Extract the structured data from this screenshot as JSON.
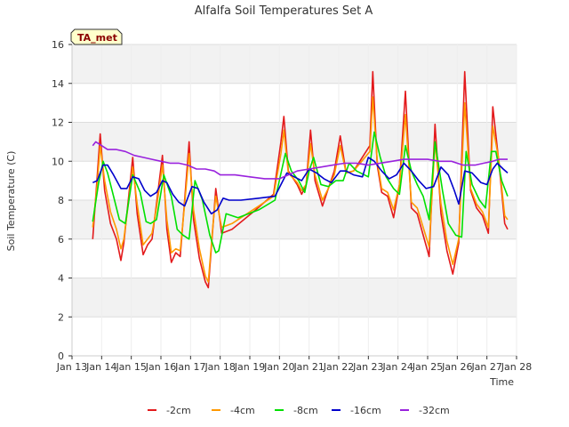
{
  "chart_data": {
    "type": "line",
    "title": "Alfalfa Soil Temperatures Set A",
    "xlabel": "Time",
    "ylabel": "Soil Temperature (C)",
    "badge": "TA_met",
    "xlim": [
      13,
      28
    ],
    "ylim": [
      0,
      16
    ],
    "x_ticks": [
      13,
      14,
      15,
      16,
      17,
      18,
      19,
      20,
      21,
      22,
      23,
      24,
      25,
      26,
      27,
      28
    ],
    "x_tick_labels": [
      "Jan 13",
      "Jan 14",
      "Jan 15",
      "Jan 16",
      "Jan 17",
      "Jan 18",
      "Jan 19",
      "Jan 20",
      "Jan 21",
      "Jan 22",
      "Jan 23",
      "Jan 24",
      "Jan 25",
      "Jan 26",
      "Jan 27",
      "Jan 28"
    ],
    "y_ticks": [
      0,
      2,
      4,
      6,
      8,
      10,
      12,
      14,
      16
    ],
    "y_tick_labels": [
      "0",
      "2",
      "4",
      "6",
      "8",
      "10",
      "12",
      "14",
      "16"
    ],
    "grid": true,
    "legend_position": "bottom",
    "series": [
      {
        "name": "-2cm",
        "color": "#e31a1c",
        "x": [
          13.7,
          13.85,
          13.95,
          14.1,
          14.3,
          14.5,
          14.65,
          14.75,
          14.9,
          15.05,
          15.2,
          15.4,
          15.55,
          15.7,
          15.85,
          16.05,
          16.2,
          16.35,
          16.5,
          16.65,
          16.8,
          16.95,
          17.1,
          17.3,
          17.5,
          17.6,
          17.75,
          17.85,
          18.05,
          18.4,
          19.2,
          19.8,
          20.05,
          20.15,
          20.3,
          20.6,
          20.75,
          20.9,
          21.05,
          21.2,
          21.45,
          21.65,
          21.85,
          22.05,
          22.25,
          22.5,
          23.05,
          23.15,
          23.3,
          23.45,
          23.65,
          23.85,
          24.05,
          24.25,
          24.45,
          24.65,
          24.85,
          25.05,
          25.25,
          25.45,
          25.65,
          25.85,
          26.05,
          26.25,
          26.45,
          26.65,
          26.85,
          27.05,
          27.2,
          27.4,
          27.6,
          27.7
        ],
        "values": [
          6.0,
          9.2,
          11.4,
          8.5,
          6.8,
          6.0,
          4.9,
          5.8,
          8.0,
          10.2,
          7.3,
          5.2,
          5.7,
          6.0,
          7.8,
          10.3,
          6.5,
          4.8,
          5.3,
          5.1,
          8.0,
          11.0,
          7.0,
          5.0,
          3.8,
          3.5,
          6.5,
          8.6,
          6.3,
          6.5,
          7.5,
          8.3,
          11.0,
          12.3,
          9.5,
          8.8,
          8.3,
          8.8,
          11.6,
          9.0,
          7.7,
          8.6,
          9.5,
          11.3,
          9.4,
          9.5,
          10.8,
          14.6,
          9.8,
          8.4,
          8.2,
          7.1,
          8.8,
          13.6,
          7.6,
          7.3,
          6.2,
          5.1,
          11.9,
          7.3,
          5.4,
          4.2,
          5.8,
          14.6,
          8.5,
          7.6,
          7.2,
          6.3,
          12.8,
          10.0,
          6.8,
          6.5
        ]
      },
      {
        "name": "-4cm",
        "color": "#ff9900",
        "x": [
          13.7,
          13.85,
          13.95,
          14.1,
          14.3,
          14.5,
          14.65,
          14.75,
          14.9,
          15.05,
          15.2,
          15.4,
          15.55,
          15.7,
          15.85,
          16.05,
          16.2,
          16.35,
          16.5,
          16.65,
          16.8,
          16.95,
          17.1,
          17.3,
          17.5,
          17.6,
          17.75,
          17.85,
          18.05,
          18.4,
          19.2,
          19.8,
          20.05,
          20.15,
          20.3,
          20.6,
          20.75,
          20.9,
          21.05,
          21.2,
          21.45,
          21.65,
          21.85,
          22.05,
          22.25,
          22.5,
          23.05,
          23.15,
          23.3,
          23.45,
          23.65,
          23.85,
          24.05,
          24.25,
          24.45,
          24.65,
          24.85,
          25.05,
          25.25,
          25.45,
          25.65,
          25.85,
          26.05,
          26.25,
          26.45,
          26.65,
          26.85,
          27.05,
          27.2,
          27.4,
          27.6,
          27.7
        ],
        "values": [
          6.6,
          8.8,
          10.8,
          9.0,
          7.4,
          6.5,
          5.5,
          6.0,
          7.8,
          9.7,
          7.8,
          5.7,
          6.0,
          6.3,
          7.6,
          9.8,
          7.0,
          5.3,
          5.5,
          5.4,
          7.8,
          10.4,
          7.5,
          5.5,
          4.1,
          3.8,
          6.6,
          8.2,
          6.6,
          6.8,
          7.6,
          8.2,
          10.4,
          11.6,
          9.4,
          8.9,
          8.5,
          8.8,
          10.9,
          9.3,
          8.0,
          8.6,
          9.3,
          10.8,
          9.4,
          9.5,
          10.5,
          13.3,
          10.0,
          8.6,
          8.4,
          7.5,
          8.8,
          12.4,
          7.9,
          7.6,
          6.6,
          5.6,
          11.0,
          7.8,
          5.9,
          4.7,
          6.0,
          13.0,
          8.6,
          7.8,
          7.4,
          6.6,
          11.8,
          10.1,
          7.2,
          7.0
        ]
      },
      {
        "name": "-8cm",
        "color": "#00e000",
        "x": [
          13.7,
          13.9,
          14.05,
          14.2,
          14.4,
          14.6,
          14.8,
          15.05,
          15.3,
          15.5,
          15.65,
          15.85,
          16.1,
          16.35,
          16.55,
          16.75,
          16.95,
          17.15,
          17.4,
          17.65,
          17.85,
          17.95,
          18.2,
          18.6,
          19.3,
          19.85,
          20.2,
          20.4,
          20.65,
          20.85,
          21.0,
          21.15,
          21.4,
          21.65,
          21.9,
          22.15,
          22.35,
          22.6,
          23.0,
          23.2,
          23.4,
          23.6,
          23.85,
          24.05,
          24.25,
          24.45,
          24.65,
          24.85,
          25.05,
          25.25,
          25.5,
          25.7,
          25.95,
          26.15,
          26.3,
          26.5,
          26.75,
          26.95,
          27.15,
          27.3,
          27.5,
          27.7
        ],
        "values": [
          6.9,
          8.9,
          10.0,
          9.4,
          8.2,
          7.0,
          6.8,
          9.3,
          8.4,
          6.9,
          6.8,
          7.0,
          9.3,
          8.2,
          6.5,
          6.2,
          6.0,
          9.0,
          8.0,
          6.2,
          5.3,
          5.4,
          7.3,
          7.1,
          7.5,
          8.0,
          10.4,
          9.5,
          9.0,
          8.4,
          9.5,
          10.2,
          8.8,
          8.7,
          9.0,
          9.0,
          9.9,
          9.5,
          9.2,
          11.5,
          10.2,
          9.2,
          8.6,
          8.3,
          10.8,
          9.5,
          8.8,
          8.2,
          7.0,
          11.0,
          8.5,
          6.8,
          6.2,
          6.1,
          10.5,
          8.8,
          8.0,
          7.6,
          10.5,
          10.5,
          9.0,
          8.2
        ]
      },
      {
        "name": "-16cm",
        "color": "#0000cc",
        "x": [
          13.7,
          13.85,
          14.05,
          14.2,
          14.4,
          14.65,
          14.85,
          15.05,
          15.25,
          15.45,
          15.65,
          15.85,
          16.05,
          16.2,
          16.4,
          16.6,
          16.8,
          17.05,
          17.25,
          17.45,
          17.7,
          17.9,
          18.1,
          18.3,
          18.7,
          19.3,
          19.85,
          20.05,
          20.25,
          20.5,
          20.75,
          21.0,
          21.25,
          21.5,
          21.75,
          22.05,
          22.25,
          22.5,
          22.8,
          23.0,
          23.2,
          23.45,
          23.7,
          23.95,
          24.2,
          24.45,
          24.7,
          24.95,
          25.2,
          25.45,
          25.7,
          25.9,
          26.05,
          26.25,
          26.5,
          26.8,
          27.0,
          27.2,
          27.35,
          27.55,
          27.7
        ],
        "values": [
          8.9,
          9.0,
          9.8,
          9.8,
          9.3,
          8.6,
          8.6,
          9.2,
          9.1,
          8.5,
          8.2,
          8.4,
          9.0,
          8.9,
          8.3,
          7.9,
          7.7,
          8.7,
          8.6,
          7.9,
          7.3,
          7.5,
          8.1,
          8.0,
          8.0,
          8.1,
          8.2,
          8.8,
          9.4,
          9.2,
          9.0,
          9.6,
          9.4,
          9.1,
          8.9,
          9.5,
          9.5,
          9.3,
          9.2,
          10.2,
          10.0,
          9.5,
          9.1,
          9.3,
          9.9,
          9.5,
          9.0,
          8.6,
          8.7,
          9.7,
          9.3,
          8.5,
          7.8,
          9.5,
          9.4,
          8.9,
          8.8,
          9.6,
          9.9,
          9.6,
          9.4
        ]
      },
      {
        "name": "-32cm",
        "color": "#9922dd",
        "x": [
          13.7,
          13.8,
          14.0,
          14.2,
          14.5,
          14.8,
          15.1,
          15.4,
          15.7,
          16.0,
          16.3,
          16.6,
          16.9,
          17.2,
          17.5,
          17.8,
          18.0,
          18.5,
          19.0,
          19.5,
          20.0,
          20.3,
          20.6,
          21.0,
          21.4,
          21.8,
          22.2,
          22.6,
          23.0,
          23.4,
          23.8,
          24.2,
          24.6,
          25.0,
          25.4,
          25.8,
          26.2,
          26.6,
          26.9,
          27.2,
          27.4,
          27.7
        ],
        "values": [
          10.8,
          11.0,
          10.8,
          10.6,
          10.6,
          10.5,
          10.3,
          10.2,
          10.1,
          10.0,
          9.9,
          9.9,
          9.8,
          9.6,
          9.6,
          9.5,
          9.3,
          9.3,
          9.2,
          9.1,
          9.1,
          9.3,
          9.5,
          9.6,
          9.7,
          9.8,
          9.9,
          9.9,
          9.8,
          9.9,
          10.0,
          10.1,
          10.1,
          10.1,
          10.0,
          10.0,
          9.8,
          9.8,
          9.9,
          10.0,
          10.1,
          10.1
        ]
      }
    ]
  }
}
